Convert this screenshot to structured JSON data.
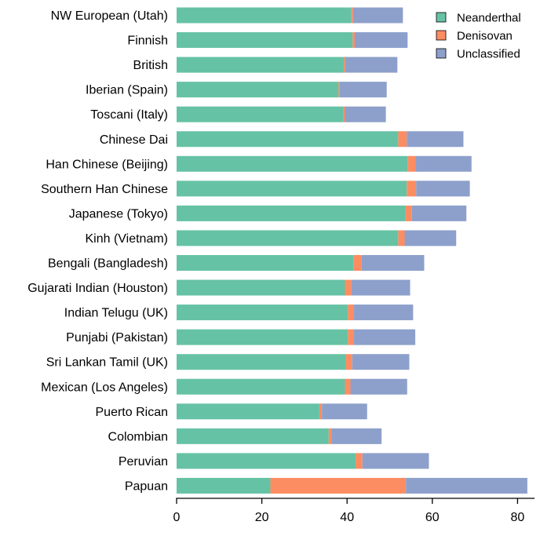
{
  "chart_data": {
    "type": "bar",
    "orientation": "horizontal",
    "stacked": true,
    "categories": [
      "NW European (Utah)",
      "Finnish",
      "British",
      "Iberian (Spain)",
      "Toscani (Italy)",
      "Chinese Dai",
      "Han Chinese (Beijing)",
      "Southern Han Chinese",
      "Japanese (Tokyo)",
      "Kinh (Vietnam)",
      "Bengali (Bangladesh)",
      "Gujarati Indian (Houston)",
      "Indian Telugu (UK)",
      "Punjabi (Pakistan)",
      "Sri Lankan Tamil (UK)",
      "Mexican (Los Angeles)",
      "Puerto Rican",
      "Colombian",
      "Peruvian",
      "Papuan"
    ],
    "series": [
      {
        "name": "Neanderthal",
        "color": "#66c2a5",
        "values": [
          41.0,
          41.3,
          39.3,
          38.0,
          39.2,
          52.0,
          54.2,
          54.0,
          53.7,
          52.0,
          41.5,
          39.5,
          40.2,
          40.2,
          39.7,
          39.5,
          33.5,
          35.7,
          42.0,
          22.0
        ]
      },
      {
        "name": "Denisovan",
        "color": "#fc8d62",
        "values": [
          0.4,
          0.5,
          0.3,
          0.3,
          0.3,
          2.0,
          1.8,
          2.2,
          1.5,
          1.5,
          1.9,
          1.5,
          1.3,
          1.3,
          1.5,
          1.3,
          0.6,
          0.6,
          1.6,
          31.8
        ]
      },
      {
        "name": "Unclassified",
        "color": "#8da0cb",
        "values": [
          11.7,
          12.4,
          12.2,
          11.0,
          9.6,
          13.3,
          13.2,
          12.6,
          12.8,
          12.1,
          14.7,
          13.8,
          14.0,
          14.5,
          13.4,
          13.3,
          10.6,
          11.8,
          15.6,
          28.5
        ]
      }
    ],
    "xlim": [
      0,
      84
    ],
    "xticks": [
      "0",
      "20",
      "40",
      "60",
      "80"
    ],
    "grid": false,
    "legend_position": "top-right"
  }
}
